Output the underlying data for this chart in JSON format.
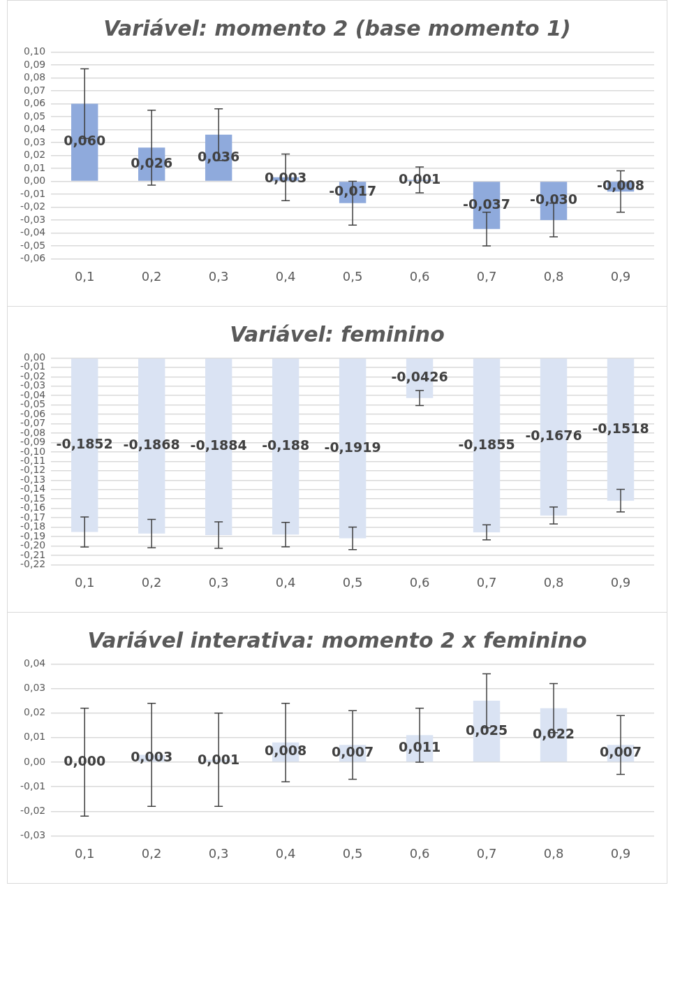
{
  "chart_data": [
    {
      "type": "bar",
      "title": "Variável: momento 2 (base momento 1)",
      "categories": [
        "0,1",
        "0,2",
        "0,3",
        "0,4",
        "0,5",
        "0,6",
        "0,7",
        "0,8",
        "0,9"
      ],
      "values": [
        0.06,
        0.026,
        0.036,
        0.003,
        -0.017,
        0.001,
        -0.037,
        -0.03,
        -0.008
      ],
      "errors": [
        0.027,
        0.029,
        0.02,
        0.018,
        0.017,
        0.01,
        0.013,
        0.013,
        0.016
      ],
      "value_labels": [
        "0,060",
        "0,026",
        "0,036",
        "0,003",
        "-0,017",
        "0,001",
        "-0,037",
        "-0,030",
        "-0,008"
      ],
      "color": "#8faadc",
      "ylim": [
        -0.06,
        0.1
      ],
      "yticks": [
        {
          "value": -0.06,
          "label": "-0,06"
        },
        {
          "value": -0.05,
          "label": "-0,05"
        },
        {
          "value": -0.04,
          "label": "-0,04"
        },
        {
          "value": -0.03,
          "label": "-0,03"
        },
        {
          "value": -0.02,
          "label": "-0,02"
        },
        {
          "value": -0.01,
          "label": "-0,01"
        },
        {
          "value": 0,
          "label": "0,00"
        },
        {
          "value": 0.01,
          "label": "0,01"
        },
        {
          "value": 0.02,
          "label": "0,02"
        },
        {
          "value": 0.03,
          "label": "0,03"
        },
        {
          "value": 0.04,
          "label": "0,04"
        },
        {
          "value": 0.05,
          "label": "0,05"
        },
        {
          "value": 0.06,
          "label": "0,06"
        },
        {
          "value": 0.07,
          "label": "0,07"
        },
        {
          "value": 0.08,
          "label": "0,08"
        },
        {
          "value": 0.09,
          "label": "0,09"
        },
        {
          "value": 0.1,
          "label": "0,10"
        }
      ],
      "grid": "y",
      "legend": false
    },
    {
      "type": "bar",
      "title": "Variável: feminino",
      "categories": [
        "0,1",
        "0,2",
        "0,3",
        "0,4",
        "0,5",
        "0,6",
        "0,7",
        "0,8",
        "0,9"
      ],
      "values": [
        -0.1852,
        -0.1868,
        -0.1884,
        -0.188,
        -0.1919,
        -0.0426,
        -0.1855,
        -0.1676,
        -0.1518
      ],
      "errors": [
        0.016,
        0.015,
        0.014,
        0.013,
        0.012,
        0.008,
        0.008,
        0.009,
        0.012
      ],
      "value_labels": [
        "-0,1852",
        "-0,1868",
        "-0,1884",
        "-0,188",
        "-0,1919",
        "-0,0426",
        "-0,1855",
        "-0,1676",
        "-0,1518"
      ],
      "color": "#dae3f3",
      "ylim": [
        -0.22,
        0
      ],
      "yticks": [
        {
          "value": -0.22,
          "label": "-0,22"
        },
        {
          "value": -0.21,
          "label": "-0,21"
        },
        {
          "value": -0.2,
          "label": "-0,20"
        },
        {
          "value": -0.19,
          "label": "-0,19"
        },
        {
          "value": -0.18,
          "label": "-0,18"
        },
        {
          "value": -0.17,
          "label": "-0,17"
        },
        {
          "value": -0.16,
          "label": "-0,16"
        },
        {
          "value": -0.15,
          "label": "-0,15"
        },
        {
          "value": -0.14,
          "label": "-0,14"
        },
        {
          "value": -0.13,
          "label": "-0,13"
        },
        {
          "value": -0.12,
          "label": "-0,12"
        },
        {
          "value": -0.11,
          "label": "-0,11"
        },
        {
          "value": -0.1,
          "label": "-0,10"
        },
        {
          "value": -0.09,
          "label": "-0,09"
        },
        {
          "value": -0.08,
          "label": "-0,08"
        },
        {
          "value": -0.07,
          "label": "-0,07"
        },
        {
          "value": -0.06,
          "label": "-0,06"
        },
        {
          "value": -0.05,
          "label": "-0,05"
        },
        {
          "value": -0.04,
          "label": "-0,04"
        },
        {
          "value": -0.03,
          "label": "-0,03"
        },
        {
          "value": -0.02,
          "label": "-0,02"
        },
        {
          "value": -0.01,
          "label": "-0,01"
        },
        {
          "value": 0,
          "label": "0,00"
        }
      ],
      "grid": "y",
      "legend": false
    },
    {
      "type": "bar",
      "title": "Variável interativa: momento 2 x feminino",
      "categories": [
        "0,1",
        "0,2",
        "0,3",
        "0,4",
        "0,5",
        "0,6",
        "0,7",
        "0,8",
        "0,9"
      ],
      "values": [
        0.0,
        0.003,
        0.001,
        0.008,
        0.007,
        0.011,
        0.025,
        0.022,
        0.007
      ],
      "errors": [
        0.022,
        0.021,
        0.019,
        0.016,
        0.014,
        0.011,
        0.011,
        0.01,
        0.012
      ],
      "value_labels": [
        "0,000",
        "0,003",
        "0,001",
        "0,008",
        "0,007",
        "0,011",
        "0,025",
        "0,022",
        "0,007"
      ],
      "color": "#dae3f3",
      "ylim": [
        -0.03,
        0.04
      ],
      "yticks": [
        {
          "value": -0.03,
          "label": "-0,03"
        },
        {
          "value": -0.02,
          "label": "-0,02"
        },
        {
          "value": -0.01,
          "label": "-0,01"
        },
        {
          "value": 0,
          "label": "0,00"
        },
        {
          "value": 0.01,
          "label": "0,01"
        },
        {
          "value": 0.02,
          "label": "0,02"
        },
        {
          "value": 0.03,
          "label": "0,03"
        },
        {
          "value": 0.04,
          "label": "0,04"
        }
      ],
      "grid": "y",
      "legend": false
    }
  ]
}
